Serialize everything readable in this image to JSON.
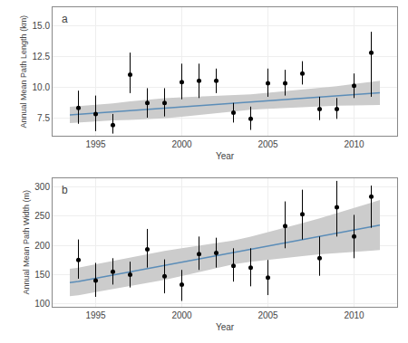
{
  "chart_data": [
    {
      "type": "scatter",
      "xlabel": "Year",
      "ylabel": "Annual Mean Path Length (km)",
      "annotations": [
        "a"
      ],
      "xlim": [
        1992.5,
        2012.5
      ],
      "xticks": [
        1995,
        2000,
        2005,
        2010
      ],
      "ylim": [
        6.0,
        16.5
      ],
      "yticks": [
        7.5,
        {
          "value": 10.0,
          "label": "10.0"
        },
        12.5,
        {
          "value": 15.0,
          "label": "15.0"
        }
      ],
      "grid": true,
      "series": [
        {
          "type": "band",
          "color": "#cccccc",
          "x": [
            1993.5,
            1994.0,
            1995.0,
            1996.0,
            1997.0,
            1998.0,
            1999.0,
            2000.0,
            2001.0,
            2002.0,
            2003.0,
            2004.0,
            2005.0,
            2006.0,
            2007.0,
            2008.0,
            2009.0,
            2010.0,
            2011.0,
            2011.5
          ],
          "lower": [
            7.05,
            7.1,
            7.2,
            7.27,
            7.32,
            7.38,
            7.45,
            7.58,
            7.73,
            7.89,
            8.04,
            8.14,
            8.22,
            8.29,
            8.36,
            8.42,
            8.47,
            8.5,
            8.53,
            8.54
          ],
          "upper": [
            8.39,
            8.44,
            8.54,
            8.67,
            8.82,
            8.96,
            9.09,
            9.16,
            9.21,
            9.25,
            9.3,
            9.4,
            9.52,
            9.65,
            9.78,
            9.92,
            10.07,
            10.24,
            10.41,
            10.5
          ]
        },
        {
          "type": "line",
          "color": "#5b8db8",
          "x": [
            1993.5,
            1994.0,
            1995.0,
            1996.0,
            1997.0,
            1998.0,
            1999.0,
            2000.0,
            2001.0,
            2002.0,
            2003.0,
            2004.0,
            2005.0,
            2006.0,
            2007.0,
            2008.0,
            2009.0,
            2010.0,
            2011.0,
            2011.5
          ],
          "values": [
            7.72,
            7.77,
            7.87,
            7.97,
            8.07,
            8.17,
            8.27,
            8.37,
            8.47,
            8.57,
            8.67,
            8.77,
            8.87,
            8.97,
            9.07,
            9.17,
            9.27,
            9.37,
            9.47,
            9.52
          ]
        },
        {
          "type": "scatter",
          "color": "black",
          "marker": "circle",
          "x": [
            1994,
            1995,
            1996,
            1997,
            1998,
            1999,
            2000,
            2001,
            2002,
            2003,
            2004,
            2005,
            2006,
            2007,
            2008,
            2009,
            2010,
            2011
          ],
          "values": [
            8.3,
            7.8,
            6.9,
            11.0,
            8.7,
            8.7,
            10.4,
            10.5,
            10.5,
            7.9,
            7.4,
            10.3,
            10.3,
            11.1,
            8.2,
            8.2,
            10.1,
            12.8
          ],
          "error_low": [
            7.0,
            6.4,
            6.2,
            9.5,
            7.5,
            7.6,
            9.0,
            9.1,
            9.5,
            7.1,
            6.5,
            9.2,
            9.3,
            10.2,
            7.3,
            7.4,
            9.1,
            9.2
          ],
          "error_high": [
            9.7,
            9.3,
            7.8,
            12.8,
            9.9,
            9.9,
            11.9,
            11.9,
            11.5,
            8.7,
            8.4,
            11.5,
            11.4,
            12.1,
            9.2,
            9.1,
            11.1,
            14.5
          ]
        }
      ]
    },
    {
      "type": "scatter",
      "xlabel": "Year",
      "ylabel": "Annual Mean Path Width (m)",
      "annotations": [
        "b"
      ],
      "xlim": [
        1992.5,
        2012.5
      ],
      "xticks": [
        1995,
        2000,
        2005,
        2010
      ],
      "ylim": [
        95,
        315
      ],
      "yticks": [
        100,
        150,
        200,
        250,
        300
      ],
      "grid": true,
      "series": [
        {
          "type": "band",
          "color": "#cccccc",
          "x": [
            1993.5,
            1994.0,
            1995.0,
            1996.0,
            1997.0,
            1998.0,
            1999.0,
            2000.0,
            2001.0,
            2002.0,
            2003.0,
            2004.0,
            2005.0,
            2006.0,
            2007.0,
            2008.0,
            2009.0,
            2010.0,
            2011.0,
            2011.5
          ],
          "lower": [
            113.0,
            114.8,
            120.0,
            125.0,
            130.0,
            135.5,
            141.0,
            147.5,
            154.5,
            161.5,
            167.5,
            172.0,
            175.5,
            178.5,
            181.5,
            184.5,
            187.0,
            189.0,
            191.0,
            192.0
          ],
          "upper": [
            160.0,
            161.8,
            167.6,
            173.6,
            179.6,
            185.1,
            190.6,
            195.1,
            199.1,
            203.1,
            208.1,
            214.6,
            222.1,
            230.1,
            238.1,
            246.1,
            254.6,
            263.6,
            272.6,
            277.2
          ]
        },
        {
          "type": "line",
          "color": "#5b8db8",
          "x": [
            1993.5,
            1994.0,
            1995.0,
            1996.0,
            1997.0,
            1998.0,
            1999.0,
            2000.0,
            2001.0,
            2002.0,
            2003.0,
            2004.0,
            2005.0,
            2006.0,
            2007.0,
            2008.0,
            2009.0,
            2010.0,
            2011.0,
            2011.5
          ],
          "values": [
            136.5,
            138.3,
            143.8,
            149.3,
            154.8,
            160.3,
            165.8,
            171.3,
            176.8,
            182.3,
            187.8,
            193.3,
            198.8,
            204.3,
            209.8,
            215.3,
            220.8,
            226.3,
            231.8,
            234.6
          ]
        },
        {
          "type": "scatter",
          "color": "black",
          "marker": "circle",
          "x": [
            1994,
            1995,
            1996,
            1997,
            1998,
            1999,
            2000,
            2001,
            2002,
            2003,
            2004,
            2005,
            2006,
            2007,
            2008,
            2009,
            2010,
            2011
          ],
          "values": [
            175,
            140,
            155,
            150,
            193,
            147,
            133,
            185,
            187,
            165,
            162,
            145,
            233,
            253,
            178,
            265,
            215,
            283
          ],
          "error_low": [
            143,
            112,
            133,
            128,
            162,
            118,
            105,
            158,
            162,
            138,
            130,
            115,
            195,
            210,
            148,
            215,
            178,
            230
          ],
          "error_high": [
            210,
            170,
            178,
            172,
            228,
            176,
            158,
            215,
            213,
            195,
            195,
            175,
            275,
            295,
            215,
            310,
            252,
            302
          ]
        }
      ]
    }
  ]
}
